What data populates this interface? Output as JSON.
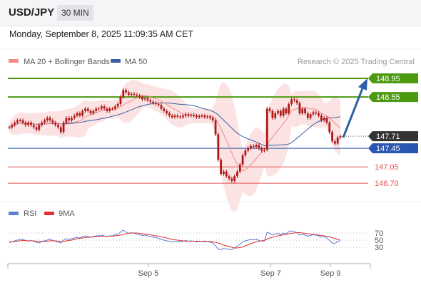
{
  "header": {
    "symbol": "USD/JPY",
    "timeframe": "30 MIN"
  },
  "timestamp": "Monday, September 8, 2025 11:09:35 AM CET",
  "legend": {
    "bollinger_label": "MA 20 + Bollinger Bands",
    "ma50_label": "MA 50",
    "bollinger_color": "#f08a8a",
    "ma50_color": "#3a5fa0",
    "credit": "Research © 2025 Trading Central"
  },
  "rsi_legend": {
    "rsi_label": "RSI",
    "ma_label": "9MA",
    "rsi_color": "#5b7fd6",
    "ma_color": "#e23030"
  },
  "colors": {
    "up_line": "#4c9a10",
    "pivot": "#2a55b0",
    "support": "#e05050",
    "arrow": "#2d5fa8",
    "candle": "#b01818",
    "band_fill": "#fbdcdc"
  },
  "chart_data": [
    {
      "type": "candlestick",
      "ylim": [
        146.35,
        149.18
      ],
      "x_ticks": [
        "Sep 5",
        "Sep 7",
        "Sep 9"
      ],
      "price_label": "147.71",
      "last_price": 147.71,
      "levels": [
        {
          "label": "148.95",
          "value": 148.95,
          "kind": "resistance"
        },
        {
          "label": "148.55",
          "value": 148.55,
          "kind": "resistance"
        },
        {
          "label": "147.45",
          "value": 147.45,
          "kind": "pivot"
        },
        {
          "label": "147.05",
          "value": 147.05,
          "kind": "support"
        },
        {
          "label": "146.70",
          "value": 146.7,
          "kind": "support"
        }
      ],
      "arrow": {
        "from": 147.68,
        "to": 148.95
      },
      "close": [
        147.9,
        147.95,
        148.0,
        148.05,
        148.05,
        148.0,
        147.95,
        148.0,
        147.95,
        147.9,
        147.85,
        147.95,
        148.0,
        148.05,
        148.1,
        148.05,
        148.0,
        147.95,
        147.9,
        147.8,
        148.0,
        148.1,
        148.05,
        148.1,
        148.15,
        148.2,
        148.15,
        148.25,
        148.3,
        148.25,
        148.2,
        148.25,
        148.3,
        148.3,
        148.35,
        148.3,
        148.25,
        148.3,
        148.3,
        148.35,
        148.4,
        148.55,
        148.7,
        148.65,
        148.6,
        148.62,
        148.6,
        148.58,
        148.55,
        148.5,
        148.52,
        148.48,
        148.45,
        148.42,
        148.4,
        148.38,
        148.3,
        148.25,
        148.2,
        148.15,
        148.12,
        148.15,
        148.13,
        148.12,
        148.15,
        148.18,
        148.15,
        148.17,
        148.15,
        148.12,
        148.14,
        148.15,
        148.12,
        148.13,
        148.1,
        148.05,
        147.75,
        147.2,
        146.9,
        146.95,
        146.85,
        146.8,
        146.75,
        146.85,
        146.95,
        147.1,
        147.3,
        147.4,
        147.45,
        147.5,
        147.48,
        147.52,
        147.45,
        147.4,
        147.42,
        148.3,
        148.25,
        148.1,
        148.2,
        148.25,
        148.15,
        148.3,
        148.2,
        148.4,
        148.5,
        148.48,
        148.42,
        148.2,
        148.3,
        148.2,
        148.1,
        148.18,
        148.22,
        148.2,
        148.15,
        148.05,
        148.1,
        148.0,
        147.8,
        147.6,
        147.55,
        147.68,
        147.71
      ],
      "rsi_ylim": [
        0,
        100
      ],
      "rsi_ticks": [
        "70",
        "50",
        "30"
      ],
      "rsi": [
        43,
        45,
        48,
        50,
        52,
        52,
        49,
        47,
        49,
        47,
        44,
        42,
        46,
        48,
        50,
        53,
        49,
        47,
        45,
        42,
        50,
        54,
        52,
        54,
        56,
        58,
        56,
        60,
        62,
        60,
        58,
        60,
        62,
        62,
        64,
        62,
        60,
        62,
        62,
        65,
        67,
        72,
        78,
        73,
        69,
        71,
        69,
        67,
        65,
        63,
        64,
        62,
        60,
        58,
        57,
        55,
        52,
        50,
        48,
        46,
        45,
        47,
        46,
        45,
        47,
        49,
        47,
        48,
        47,
        45,
        46,
        47,
        45,
        46,
        44,
        42,
        34,
        25,
        23,
        27,
        25,
        24,
        23,
        28,
        33,
        38,
        45,
        48,
        50,
        52,
        51,
        53,
        49,
        47,
        48,
        72,
        69,
        64,
        67,
        69,
        65,
        70,
        67,
        74,
        76,
        74,
        71,
        64,
        67,
        64,
        61,
        63,
        65,
        64,
        62,
        58,
        60,
        56,
        49,
        42,
        40,
        46,
        48
      ],
      "rsi_ma": [
        45,
        45,
        46,
        47,
        48,
        49,
        49,
        48,
        48,
        48,
        47,
        46,
        46,
        46,
        47,
        48,
        48,
        48,
        47,
        46,
        46,
        48,
        49,
        50,
        52,
        54,
        55,
        56,
        57,
        58,
        58,
        59,
        60,
        60,
        61,
        61,
        61,
        61,
        61,
        62,
        63,
        64,
        66,
        68,
        69,
        70,
        70,
        70,
        69,
        68,
        67,
        66,
        65,
        63,
        62,
        61,
        59,
        58,
        56,
        54,
        52,
        51,
        50,
        49,
        48,
        47,
        47,
        47,
        47,
        47,
        47,
        47,
        47,
        46,
        46,
        45,
        44,
        42,
        39,
        36,
        34,
        32,
        30,
        28,
        28,
        29,
        31,
        34,
        37,
        40,
        43,
        45,
        47,
        48,
        49,
        53,
        56,
        58,
        60,
        62,
        63,
        65,
        66,
        68,
        69,
        70,
        71,
        71,
        70,
        69,
        68,
        67,
        66,
        65,
        64,
        63,
        62,
        61,
        59,
        57,
        54,
        52,
        50
      ]
    }
  ]
}
